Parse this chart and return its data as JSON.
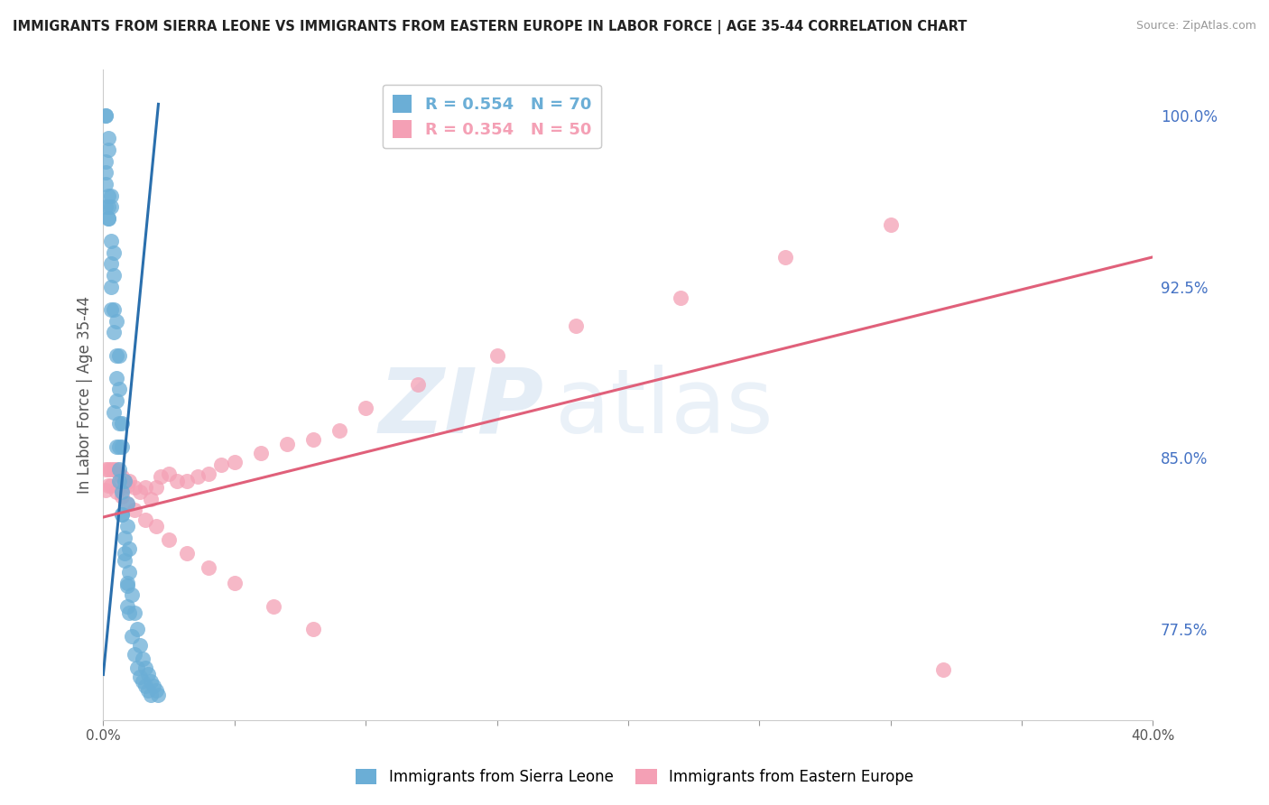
{
  "title": "IMMIGRANTS FROM SIERRA LEONE VS IMMIGRANTS FROM EASTERN EUROPE IN LABOR FORCE | AGE 35-44 CORRELATION CHART",
  "source": "Source: ZipAtlas.com",
  "ylabel": "In Labor Force | Age 35-44",
  "xlim": [
    0.0,
    0.4
  ],
  "ylim": [
    0.735,
    1.02
  ],
  "xticks": [
    0.0,
    0.05,
    0.1,
    0.15,
    0.2,
    0.25,
    0.3,
    0.35,
    0.4
  ],
  "xticklabels_show": [
    "0.0%",
    "",
    "",
    "",
    "",
    "",
    "",
    "",
    "40.0%"
  ],
  "yticks_right": [
    0.775,
    0.85,
    0.925,
    1.0
  ],
  "yticklabels_right": [
    "77.5%",
    "85.0%",
    "92.5%",
    "100.0%"
  ],
  "legend_entries": [
    {
      "label_r": "R = 0.554",
      "label_n": "N = 70",
      "color": "#6baed6"
    },
    {
      "label_r": "R = 0.354",
      "label_n": "N = 50",
      "color": "#f4a0b5"
    }
  ],
  "legend_labels_bottom": [
    "Immigrants from Sierra Leone",
    "Immigrants from Eastern Europe"
  ],
  "legend_colors_bottom": [
    "#6baed6",
    "#f4a0b5"
  ],
  "blue_color": "#6baed6",
  "pink_color": "#f4a0b5",
  "blue_line_color": "#2a6fad",
  "pink_line_color": "#e0607a",
  "watermark_zip": "ZIP",
  "watermark_atlas": "atlas",
  "watermark_color_zip": "#c5d8ec",
  "watermark_color_atlas": "#c5d8ec",
  "background_color": "#ffffff",
  "grid_color": "#d8d8d8",
  "blue_scatter_x": [
    0.001,
    0.001,
    0.002,
    0.002,
    0.003,
    0.003,
    0.003,
    0.004,
    0.004,
    0.005,
    0.005,
    0.005,
    0.006,
    0.006,
    0.006,
    0.007,
    0.007,
    0.008,
    0.008,
    0.009,
    0.009,
    0.001,
    0.001,
    0.002,
    0.002,
    0.003,
    0.003,
    0.004,
    0.004,
    0.005,
    0.006,
    0.006,
    0.007,
    0.007,
    0.008,
    0.009,
    0.009,
    0.01,
    0.01,
    0.011,
    0.012,
    0.013,
    0.014,
    0.015,
    0.016,
    0.017,
    0.018,
    0.019,
    0.02,
    0.021,
    0.001,
    0.001,
    0.002,
    0.002,
    0.003,
    0.004,
    0.005,
    0.006,
    0.007,
    0.008,
    0.009,
    0.01,
    0.011,
    0.012,
    0.013,
    0.014,
    0.015,
    0.016,
    0.017,
    0.018
  ],
  "blue_scatter_y": [
    0.98,
    0.97,
    0.96,
    0.955,
    0.945,
    0.935,
    0.925,
    0.915,
    0.905,
    0.895,
    0.885,
    0.875,
    0.865,
    0.855,
    0.845,
    0.835,
    0.825,
    0.815,
    0.805,
    0.795,
    0.785,
    1.0,
    1.0,
    0.99,
    0.985,
    0.965,
    0.96,
    0.94,
    0.93,
    0.91,
    0.895,
    0.88,
    0.865,
    0.855,
    0.84,
    0.83,
    0.82,
    0.81,
    0.8,
    0.79,
    0.782,
    0.775,
    0.768,
    0.762,
    0.758,
    0.755,
    0.752,
    0.75,
    0.748,
    0.746,
    0.96,
    0.975,
    0.955,
    0.965,
    0.915,
    0.87,
    0.855,
    0.84,
    0.825,
    0.808,
    0.794,
    0.782,
    0.772,
    0.764,
    0.758,
    0.754,
    0.752,
    0.75,
    0.748,
    0.746
  ],
  "pink_scatter_x": [
    0.001,
    0.002,
    0.003,
    0.004,
    0.005,
    0.006,
    0.007,
    0.008,
    0.009,
    0.01,
    0.012,
    0.014,
    0.016,
    0.018,
    0.02,
    0.022,
    0.025,
    0.028,
    0.032,
    0.036,
    0.04,
    0.045,
    0.05,
    0.06,
    0.07,
    0.08,
    0.09,
    0.1,
    0.12,
    0.15,
    0.18,
    0.22,
    0.26,
    0.3,
    0.001,
    0.002,
    0.003,
    0.005,
    0.007,
    0.009,
    0.012,
    0.016,
    0.02,
    0.025,
    0.032,
    0.04,
    0.05,
    0.065,
    0.08,
    0.32
  ],
  "pink_scatter_y": [
    0.845,
    0.845,
    0.845,
    0.845,
    0.845,
    0.843,
    0.842,
    0.84,
    0.838,
    0.84,
    0.837,
    0.835,
    0.837,
    0.832,
    0.837,
    0.842,
    0.843,
    0.84,
    0.84,
    0.842,
    0.843,
    0.847,
    0.848,
    0.852,
    0.856,
    0.858,
    0.862,
    0.872,
    0.882,
    0.895,
    0.908,
    0.92,
    0.938,
    0.952,
    0.836,
    0.838,
    0.838,
    0.835,
    0.833,
    0.83,
    0.827,
    0.823,
    0.82,
    0.814,
    0.808,
    0.802,
    0.795,
    0.785,
    0.775,
    0.757
  ],
  "blue_line_x": [
    0.0,
    0.021
  ],
  "blue_line_y": [
    0.755,
    1.005
  ],
  "pink_line_x": [
    0.0,
    0.4
  ],
  "pink_line_y": [
    0.824,
    0.938
  ]
}
